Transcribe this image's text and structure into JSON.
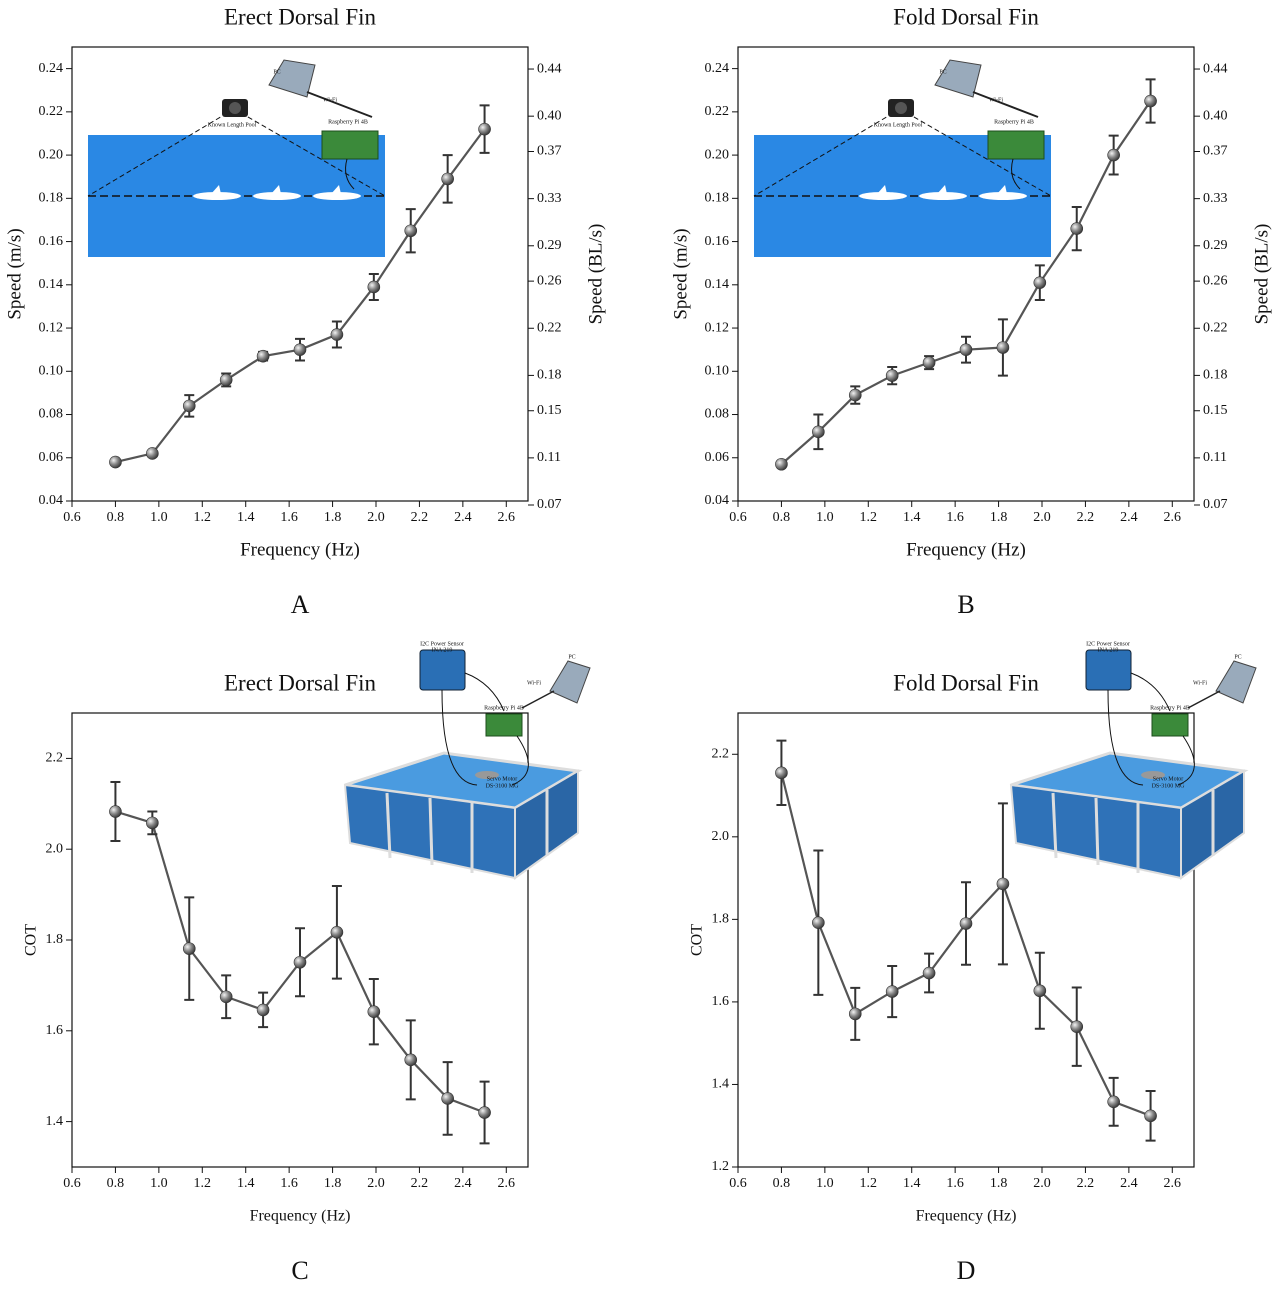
{
  "chart_data": [
    {
      "type": "line",
      "panel": "A",
      "title": "Erect Dorsal Fin",
      "xlabel": "Frequency (Hz)",
      "ylabel": "Speed (m/s)",
      "y2label": "Speed (BL/s)",
      "x": [
        0.8,
        0.97,
        1.14,
        1.31,
        1.48,
        1.65,
        1.82,
        1.99,
        2.16,
        2.33,
        2.5
      ],
      "values": [
        0.058,
        0.062,
        0.084,
        0.096,
        0.107,
        0.11,
        0.117,
        0.139,
        0.165,
        0.189,
        0.212
      ],
      "errors": [
        0.001,
        0.001,
        0.005,
        0.003,
        0.002,
        0.005,
        0.006,
        0.006,
        0.01,
        0.011,
        0.011
      ],
      "color": "#555555",
      "xlim": [
        0.6,
        2.7
      ],
      "xticks": [
        0.6,
        0.8,
        {
          "value": 1.0,
          "label": "1.0"
        },
        1.2,
        1.4,
        1.6,
        1.8,
        {
          "value": 2.0,
          "label": "2.0"
        },
        2.2,
        2.4,
        2.6
      ],
      "ylim": [
        0.04,
        0.25
      ],
      "yticks": [
        0.04,
        0.06,
        0.08,
        {
          "value": 0.1,
          "label": "0.10"
        },
        0.12,
        0.14,
        0.16,
        0.18,
        {
          "value": 0.2,
          "label": "0.20"
        },
        0.22,
        0.24
      ],
      "y2lim": [
        0.0734,
        0.4587
      ],
      "y2ticks": [
        0.07,
        0.11,
        0.15,
        0.18,
        0.22,
        0.26,
        0.29,
        0.33,
        0.37,
        {
          "value": 0.4,
          "label": "0.40"
        },
        0.44
      ],
      "annotations": [
        "Known Length Pool",
        "PC",
        "Wi-Fi",
        "Raspberry Pi 4B"
      ]
    },
    {
      "type": "line",
      "panel": "B",
      "title": "Fold Dorsal Fin",
      "xlabel": "Frequency (Hz)",
      "ylabel": "Speed (m/s)",
      "y2label": "Speed (BL/s)",
      "x": [
        0.8,
        0.97,
        1.14,
        1.31,
        1.48,
        1.65,
        1.82,
        1.99,
        2.16,
        2.33,
        2.5
      ],
      "values": [
        0.057,
        0.072,
        0.089,
        0.098,
        0.104,
        0.11,
        0.111,
        0.141,
        0.166,
        0.2,
        0.225
      ],
      "errors": [
        0.001,
        0.008,
        0.004,
        0.004,
        0.003,
        0.006,
        0.013,
        0.008,
        0.01,
        0.009,
        0.01
      ],
      "color": "#555555",
      "xlim": [
        0.6,
        2.7
      ],
      "xticks": [
        0.6,
        0.8,
        {
          "value": 1.0,
          "label": "1.0"
        },
        1.2,
        1.4,
        1.6,
        1.8,
        {
          "value": 2.0,
          "label": "2.0"
        },
        2.2,
        2.4,
        2.6
      ],
      "ylim": [
        0.04,
        0.25
      ],
      "yticks": [
        0.04,
        0.06,
        0.08,
        {
          "value": 0.1,
          "label": "0.10"
        },
        0.12,
        0.14,
        0.16,
        0.18,
        {
          "value": 0.2,
          "label": "0.20"
        },
        0.22,
        0.24
      ],
      "y2lim": [
        0.0734,
        0.4587
      ],
      "y2ticks": [
        0.07,
        0.11,
        0.15,
        0.18,
        0.22,
        0.26,
        0.29,
        0.33,
        0.37,
        {
          "value": 0.4,
          "label": "0.40"
        },
        0.44
      ],
      "annotations": [
        "Known Length Pool",
        "PC",
        "Wi-Fi",
        "Raspberry Pi 4B"
      ]
    },
    {
      "type": "line",
      "panel": "C",
      "title": "Erect Dorsal Fin",
      "xlabel": "Frequency (Hz)",
      "ylabel": "COT",
      "x": [
        0.8,
        0.97,
        1.14,
        1.31,
        1.48,
        1.65,
        1.82,
        1.99,
        2.16,
        2.33,
        2.5
      ],
      "values": [
        2.083,
        2.058,
        1.781,
        1.675,
        1.646,
        1.751,
        1.817,
        1.642,
        1.536,
        1.451,
        1.42
      ],
      "errors": [
        0.065,
        0.025,
        0.113,
        0.047,
        0.038,
        0.075,
        0.102,
        0.072,
        0.087,
        0.08,
        0.068
      ],
      "color": "#555555",
      "xlim": [
        0.6,
        2.7
      ],
      "xticks": [
        0.6,
        0.8,
        {
          "value": 1.0,
          "label": "1.0"
        },
        1.2,
        1.4,
        1.6,
        1.8,
        {
          "value": 2.0,
          "label": "2.0"
        },
        2.2,
        2.4,
        2.6
      ],
      "ylim": [
        1.3,
        2.3
      ],
      "yticks": [
        1.4,
        1.6,
        1.8,
        {
          "value": 2.0,
          "label": "2.0"
        },
        2.2
      ],
      "annotations": [
        "I2C Power Sensor",
        "INA 219",
        "PC",
        "Wi-Fi",
        "Raspberry Pi 4B",
        "Servo Motor",
        "DS-3100 MG"
      ]
    },
    {
      "type": "line",
      "panel": "D",
      "title": "Fold Dorsal Fin",
      "xlabel": "Frequency (Hz)",
      "ylabel": "COT",
      "x": [
        0.8,
        0.97,
        1.14,
        1.31,
        1.48,
        1.65,
        1.82,
        1.99,
        2.16,
        2.33,
        2.5
      ],
      "values": [
        2.155,
        1.792,
        1.571,
        1.625,
        1.67,
        1.79,
        1.886,
        1.627,
        1.54,
        1.358,
        1.324
      ],
      "errors": [
        0.078,
        0.175,
        0.063,
        0.062,
        0.047,
        0.1,
        0.195,
        0.092,
        0.095,
        0.058,
        0.06
      ],
      "color": "#555555",
      "xlim": [
        0.6,
        2.7
      ],
      "xticks": [
        0.6,
        0.8,
        {
          "value": 1.0,
          "label": "1.0"
        },
        1.2,
        1.4,
        1.6,
        1.8,
        {
          "value": 2.0,
          "label": "2.0"
        },
        2.2,
        2.4,
        2.6
      ],
      "ylim": [
        1.2,
        2.3
      ],
      "yticks": [
        1.2,
        1.4,
        1.6,
        1.8,
        {
          "value": 2.0,
          "label": "2.0"
        },
        2.2
      ],
      "annotations": [
        "I2C Power Sensor",
        "INA 219",
        "PC",
        "Wi-Fi",
        "Raspberry Pi 4B",
        "Servo Motor",
        "DS-3100 MG"
      ]
    }
  ]
}
